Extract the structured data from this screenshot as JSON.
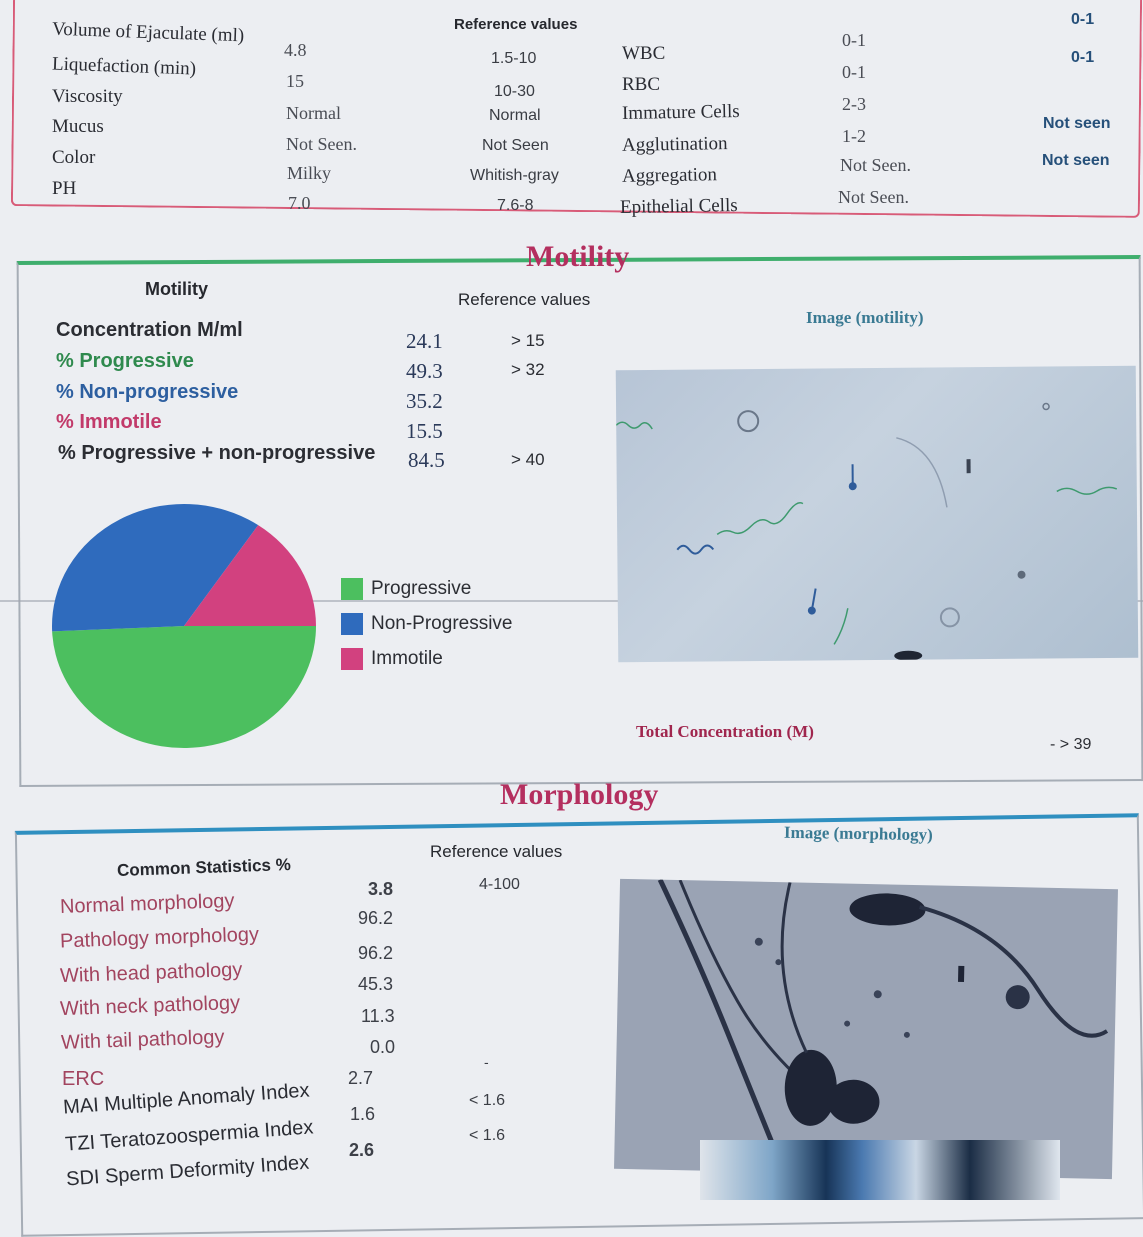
{
  "top": {
    "ref_header": "Reference values",
    "left_rows": [
      {
        "label": "Volume of Ejaculate (ml)",
        "value": "4.8",
        "ref": "1.5-10"
      },
      {
        "label": "Liquefaction (min)",
        "value": "15",
        "ref": "10-30"
      },
      {
        "label": "Viscosity",
        "value": "Normal",
        "ref": "Normal"
      },
      {
        "label": "Mucus",
        "value": "Not Seen.",
        "ref": "Not Seen"
      },
      {
        "label": "Color",
        "value": "Milky",
        "ref": "Whitish-gray"
      },
      {
        "label": "PH",
        "value": "7.0",
        "ref": "7.6-8"
      }
    ],
    "right_rows": [
      {
        "label": "WBC",
        "value": "0-1",
        "ref": "0-1"
      },
      {
        "label": "RBC",
        "value": "0-1",
        "ref": "0-1"
      },
      {
        "label": "Immature Cells",
        "value": "2-3",
        "ref": ""
      },
      {
        "label": "Agglutination",
        "value": "1-2",
        "ref": "Not seen"
      },
      {
        "label": "Aggregation",
        "value": "Not Seen.",
        "ref": "Not seen"
      },
      {
        "label": "Epithelial Cells",
        "value": "Not Seen.",
        "ref": ""
      }
    ]
  },
  "motility": {
    "section_title": "Motility",
    "header": "Motility",
    "ref_header": "Reference values",
    "image_caption": "Image (motility)",
    "rows": [
      {
        "label": "Concentration M/ml",
        "value": "24.1",
        "ref": "> 15",
        "color": "#2b2d33"
      },
      {
        "label": "% Progressive",
        "value": "49.3",
        "ref": "> 32",
        "color": "#2f8a4e"
      },
      {
        "label": "% Non-progressive",
        "value": "35.2",
        "ref": "",
        "color": "#2d5fa0"
      },
      {
        "label": "% Immotile",
        "value": "15.5",
        "ref": "",
        "color": "#c23a6a"
      },
      {
        "label": "% Progressive + non-progressive",
        "value": "84.5",
        "ref": "> 40",
        "color": "#2b2d33"
      }
    ],
    "total_label": "Total Concentration (M)",
    "total_value": "- > 39"
  },
  "chart_data": {
    "type": "pie",
    "categories": [
      "Progressive",
      "Non-Progressive",
      "Immotile"
    ],
    "values": [
      49.3,
      35.2,
      15.5
    ],
    "colors": [
      "#4cbf5f",
      "#2f6bbd",
      "#d2417f"
    ],
    "legend": "right"
  },
  "morphology": {
    "section_title": "Morphology",
    "header": "Common Statistics %",
    "ref_header": "Reference values",
    "image_caption": "Image (morphology)",
    "rows": [
      {
        "label": "Normal morphology",
        "value": "3.8",
        "ref": "4-100"
      },
      {
        "label": "Pathology morphology",
        "value": "96.2",
        "ref": ""
      },
      {
        "label": "With head pathology",
        "value": "96.2",
        "ref": ""
      },
      {
        "label": "With neck pathology",
        "value": "45.3",
        "ref": ""
      },
      {
        "label": "With tail pathology",
        "value": "11.3",
        "ref": ""
      },
      {
        "label": "ERC",
        "value": "0.0",
        "ref": "-"
      },
      {
        "label": "MAI Multiple Anomaly Index",
        "value": "2.7",
        "ref": "< 1.6"
      },
      {
        "label": "TZI Teratozoospermia Index",
        "value": "1.6",
        "ref": "< 1.6"
      },
      {
        "label": "SDI Sperm Deformity Index",
        "value": "2.6",
        "ref": ""
      }
    ]
  }
}
